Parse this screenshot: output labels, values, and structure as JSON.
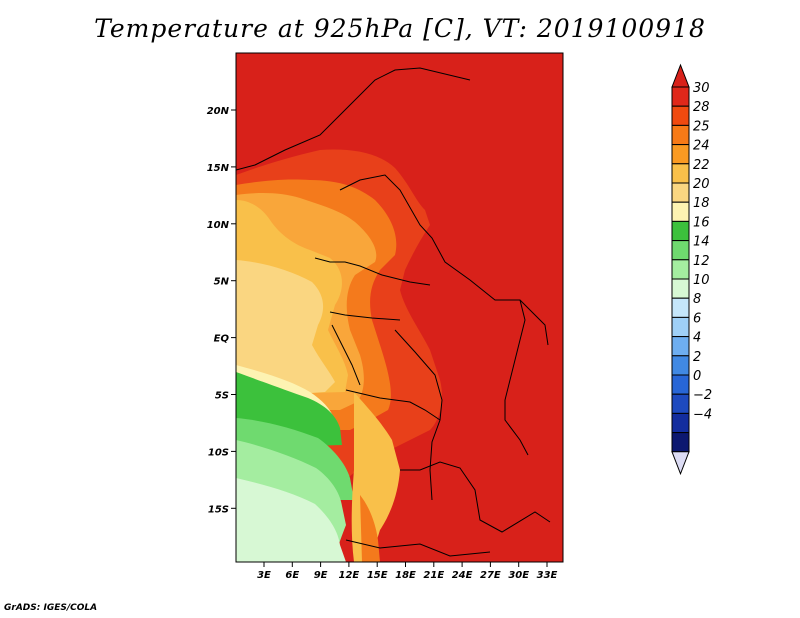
{
  "title": "Temperature at 925hPa [C], VT: 2019100918",
  "credit": "GrADS: IGES/COLA",
  "map": {
    "lat_labels": [
      "20N",
      "15N",
      "10N",
      "5N",
      "EQ",
      "5S",
      "10S",
      "15S"
    ],
    "lon_labels": [
      "3E",
      "6E",
      "9E",
      "12E",
      "15E",
      "18E",
      "21E",
      "24E",
      "27E",
      "30E",
      "33E"
    ]
  },
  "colorbar": {
    "levels": [
      "30",
      "28",
      "25",
      "24",
      "22",
      "20",
      "18",
      "16",
      "14",
      "12",
      "10",
      "8",
      "6",
      "4",
      "2",
      "0",
      "−2",
      "−4"
    ],
    "colors": [
      "#e0281a",
      "#f04a10",
      "#f77a17",
      "#fa9a22",
      "#f9c04a",
      "#fad681",
      "#fdf3b2",
      "#3cc13c",
      "#6fda6f",
      "#a4eda0",
      "#d7f8d4",
      "#c5e6fa",
      "#9fd0f7",
      "#6eaef0",
      "#4189e3",
      "#2866d6",
      "#1e4abf",
      "#132d9e",
      "#0c1870"
    ],
    "top_color": "#d8211a",
    "bottom_color": "#dcdcf4"
  }
}
